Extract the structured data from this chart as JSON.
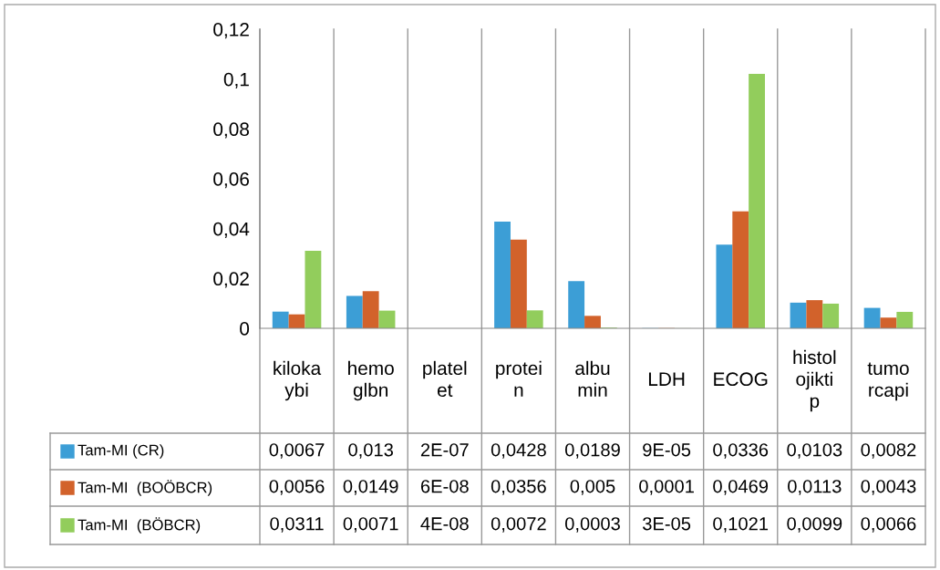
{
  "chart_data": {
    "type": "bar",
    "categories": [
      "kiloka\nybi",
      "hemo\nglbn",
      "platel\net",
      "protei\nn",
      "albu\nmin",
      "LDH",
      "ECOG",
      "histol\nojikti\np",
      "tumo\nrcapi"
    ],
    "series": [
      {
        "name": "Tam-MI (CR)",
        "color": "#3c9ed6",
        "values": [
          0.0067,
          0.013,
          2e-07,
          0.0428,
          0.0189,
          9e-05,
          0.0336,
          0.0103,
          0.0082
        ],
        "value_labels": [
          "0,0067",
          "0,013",
          "2E-07",
          "0,0428",
          "0,0189",
          "9E-05",
          "0,0336",
          "0,0103",
          "0,0082"
        ]
      },
      {
        "name": "Tam-MI  (BOÖBCR)",
        "color": "#d2622b",
        "values": [
          0.0056,
          0.0149,
          6e-08,
          0.0356,
          0.005,
          0.0001,
          0.0469,
          0.0113,
          0.0043
        ],
        "value_labels": [
          "0,0056",
          "0,0149",
          "6E-08",
          "0,0356",
          "0,005",
          "0,0001",
          "0,0469",
          "0,0113",
          "0,0043"
        ]
      },
      {
        "name": "Tam-MI  (BÖBCR)",
        "color": "#92cd5c",
        "values": [
          0.0311,
          0.0071,
          4e-08,
          0.0072,
          0.0003,
          3e-05,
          0.1021,
          0.0099,
          0.0066
        ],
        "value_labels": [
          "0,0311",
          "0,0071",
          "4E-08",
          "0,0072",
          "0,0003",
          "3E-05",
          "0,1021",
          "0,0099",
          "0,0066"
        ]
      }
    ],
    "ylim": [
      0,
      0.12
    ],
    "yticks": [
      0,
      {
        "value": 0.02,
        "label": "0,02"
      },
      {
        "value": 0.04,
        "label": "0,04"
      },
      {
        "value": 0.06,
        "label": "0,06"
      },
      {
        "value": 0.08,
        "label": "0,08"
      },
      {
        "value": 0.1,
        "label": "0,1"
      },
      {
        "value": 0.12,
        "label": "0,12"
      }
    ],
    "legend": "bottom",
    "grid": false
  }
}
